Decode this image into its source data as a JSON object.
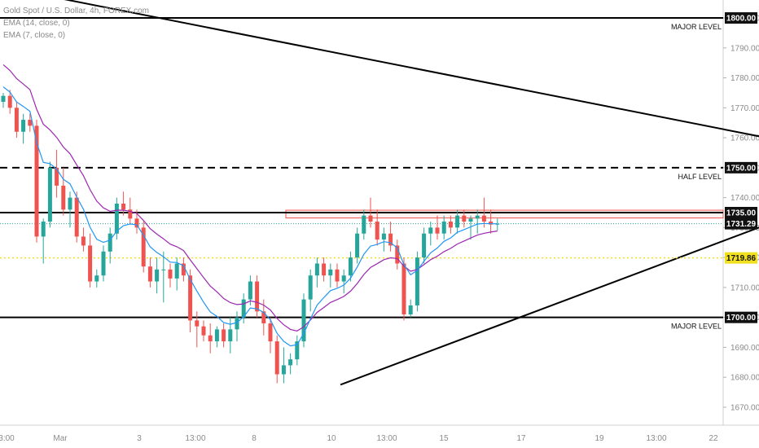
{
  "legend": {
    "symbol": "Gold Spot / U.S. Dollar, 4h, FOREX.com",
    "ema14": "EMA (14, close, 0)",
    "ema7": "EMA (7, close, 0)"
  },
  "colors": {
    "up": "#26a69a",
    "down": "#ef5350",
    "ema14": "#9c27b0",
    "ema7": "#2196f3",
    "current_line": "#f0e020",
    "zone": "#ef5350"
  },
  "chart_data": {
    "type": "candlestick",
    "ylim": [
      1664,
      1806
    ],
    "y_ticks": [
      1670,
      1680,
      1690,
      1700,
      1710,
      1720,
      1730,
      1740,
      1750,
      1760,
      1770,
      1780,
      1790,
      1800
    ],
    "x_ticks": [
      "3:00",
      "Mar",
      "3",
      "13:00",
      "8",
      "10",
      "13:00",
      "15",
      "17",
      "19",
      "13:00",
      "22"
    ],
    "levels": [
      {
        "value": 1800.0,
        "label": "1800.00",
        "note": "MAJOR LEVEL",
        "style": "solid"
      },
      {
        "value": 1750.0,
        "label": "1750.00",
        "note": "HALF LEVEL",
        "style": "dashed"
      },
      {
        "value": 1735.0,
        "label": "1735.00",
        "note": "",
        "style": "solid"
      },
      {
        "value": 1700.0,
        "label": "1700.00",
        "note": "MAJOR LEVEL",
        "style": "solid"
      }
    ],
    "current_price": {
      "value": 1731.29,
      "label": "1731.29"
    },
    "marker_price": {
      "value": 1719.86,
      "label": "1719.86"
    },
    "resistance_zone": [
      1733.2,
      1735.8
    ],
    "trendlines": [
      {
        "name": "descending",
        "from": [
          -0.5,
          1810.5
        ],
        "to": [
          137,
          1750
        ]
      },
      {
        "name": "ascending",
        "from": [
          50.5,
          1677.5
        ],
        "to": [
          137,
          1750
        ]
      }
    ],
    "candles": [
      [
        1772,
        1775,
        1770,
        1774
      ],
      [
        1774,
        1776,
        1768,
        1770
      ],
      [
        1770,
        1772,
        1760,
        1762
      ],
      [
        1762,
        1768,
        1758,
        1766
      ],
      [
        1766,
        1768,
        1762,
        1764
      ],
      [
        1764,
        1766,
        1725,
        1727
      ],
      [
        1727,
        1733,
        1718,
        1732
      ],
      [
        1732,
        1752,
        1730,
        1750
      ],
      [
        1750,
        1756,
        1740,
        1744
      ],
      [
        1744,
        1750,
        1734,
        1736
      ],
      [
        1736,
        1742,
        1730,
        1740
      ],
      [
        1740,
        1742,
        1725,
        1727
      ],
      [
        1727,
        1730,
        1722,
        1724
      ],
      [
        1724,
        1728,
        1710,
        1712
      ],
      [
        1712,
        1716,
        1710,
        1714
      ],
      [
        1714,
        1724,
        1712,
        1722
      ],
      [
        1722,
        1730,
        1718,
        1728
      ],
      [
        1728,
        1740,
        1726,
        1738
      ],
      [
        1738,
        1742,
        1734,
        1736
      ],
      [
        1736,
        1740,
        1731,
        1733
      ],
      [
        1733,
        1736,
        1728,
        1730
      ],
      [
        1730,
        1732,
        1715,
        1717
      ],
      [
        1717,
        1720,
        1710,
        1712
      ],
      [
        1712,
        1720,
        1708,
        1716
      ],
      [
        1716,
        1722,
        1705,
        1716
      ],
      [
        1716,
        1718,
        1710,
        1713
      ],
      [
        1713,
        1720,
        1709,
        1718
      ],
      [
        1718,
        1720,
        1712,
        1714
      ],
      [
        1714,
        1716,
        1695,
        1699
      ],
      [
        1699,
        1702,
        1690,
        1697
      ],
      [
        1697,
        1699,
        1692,
        1694
      ],
      [
        1694,
        1698,
        1688,
        1692
      ],
      [
        1692,
        1697,
        1690,
        1696
      ],
      [
        1696,
        1698,
        1690,
        1692
      ],
      [
        1692,
        1700,
        1688,
        1696
      ],
      [
        1696,
        1702,
        1692,
        1700
      ],
      [
        1700,
        1708,
        1698,
        1706
      ],
      [
        1706,
        1714,
        1704,
        1712
      ],
      [
        1712,
        1714,
        1700,
        1702
      ],
      [
        1702,
        1706,
        1694,
        1698
      ],
      [
        1698,
        1700,
        1688,
        1692
      ],
      [
        1692,
        1694,
        1678,
        1681
      ],
      [
        1681,
        1690,
        1678,
        1684
      ],
      [
        1684,
        1688,
        1681,
        1686
      ],
      [
        1686,
        1694,
        1684,
        1692
      ],
      [
        1692,
        1708,
        1690,
        1706
      ],
      [
        1706,
        1716,
        1702,
        1714
      ],
      [
        1714,
        1720,
        1710,
        1718
      ],
      [
        1718,
        1720,
        1712,
        1714
      ],
      [
        1714,
        1718,
        1710,
        1716
      ],
      [
        1716,
        1718,
        1710,
        1712
      ],
      [
        1712,
        1716,
        1708,
        1714
      ],
      [
        1714,
        1722,
        1712,
        1720
      ],
      [
        1720,
        1730,
        1718,
        1728
      ],
      [
        1728,
        1736,
        1726,
        1734
      ],
      [
        1734,
        1740,
        1730,
        1732
      ],
      [
        1732,
        1736,
        1724,
        1726
      ],
      [
        1726,
        1730,
        1722,
        1728
      ],
      [
        1728,
        1732,
        1722,
        1724
      ],
      [
        1724,
        1726,
        1716,
        1718
      ],
      [
        1718,
        1720,
        1699,
        1701
      ],
      [
        1701,
        1706,
        1700,
        1704
      ],
      [
        1704,
        1722,
        1702,
        1720
      ],
      [
        1720,
        1730,
        1718,
        1728
      ],
      [
        1728,
        1732,
        1724,
        1730
      ],
      [
        1730,
        1734,
        1726,
        1728
      ],
      [
        1728,
        1734,
        1726,
        1732
      ],
      [
        1732,
        1734,
        1728,
        1730
      ],
      [
        1730,
        1736,
        1728,
        1734
      ],
      [
        1734,
        1736,
        1730,
        1732
      ],
      [
        1732,
        1734,
        1726,
        1733
      ],
      [
        1733,
        1736,
        1728,
        1734
      ],
      [
        1734,
        1740,
        1730,
        1732
      ],
      [
        1732,
        1736,
        1728,
        1731
      ],
      [
        1731,
        1733,
        1729,
        1731.29
      ]
    ]
  }
}
